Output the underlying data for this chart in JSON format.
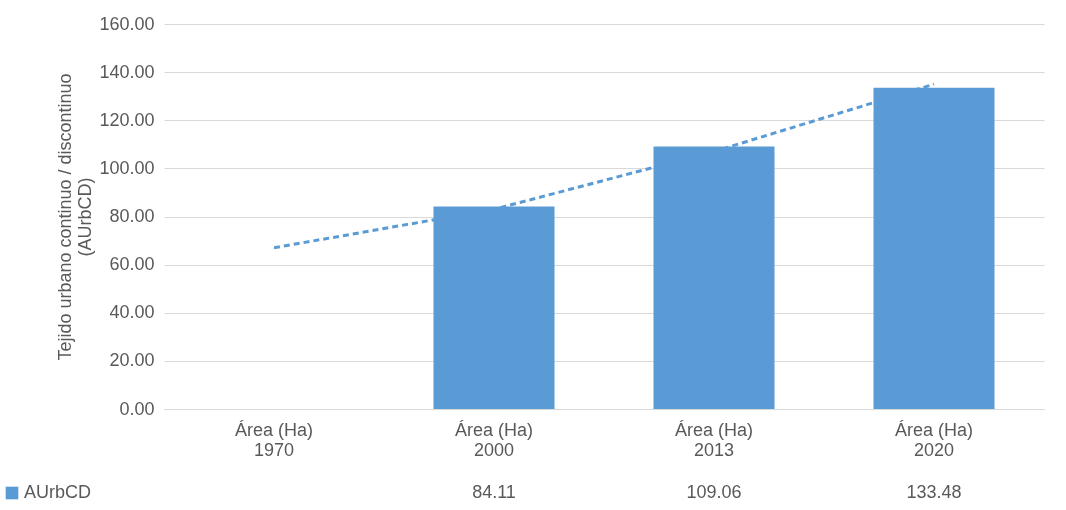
{
  "chart_data": {
    "type": "bar",
    "ylabel": "Tejido urbano continuo / discontinuo\n(AUrbCD)",
    "categories": [
      "Área (Ha)\n1970",
      "Área (Ha)\n2000",
      "Área (Ha)\n2013",
      "Área (Ha)\n2020"
    ],
    "series": [
      {
        "name": "AUrbCD",
        "color": "#5b9bd5",
        "values": [
          null,
          84.11,
          109.06,
          133.48
        ],
        "value_labels": [
          null,
          "84.11",
          "109.06",
          "133.48"
        ]
      },
      {
        "type": "line",
        "color": "#5b9bd5",
        "line_style": "dashed",
        "values": [
          67,
          83,
          107,
          135
        ]
      }
    ],
    "ylim": [
      0,
      160
    ],
    "yticks": [
      {
        "value": 0,
        "label": "0.00"
      },
      {
        "value": 20,
        "label": "20.00"
      },
      {
        "value": 40,
        "label": "40.00"
      },
      {
        "value": 60,
        "label": "60.00"
      },
      {
        "value": 80,
        "label": "80.00"
      },
      {
        "value": 100,
        "label": "100.00"
      },
      {
        "value": 120,
        "label": "120.00"
      },
      {
        "value": 140,
        "label": "140.00"
      },
      {
        "value": 160,
        "label": "160.00"
      }
    ],
    "grid": "y",
    "legend": "bottom"
  }
}
